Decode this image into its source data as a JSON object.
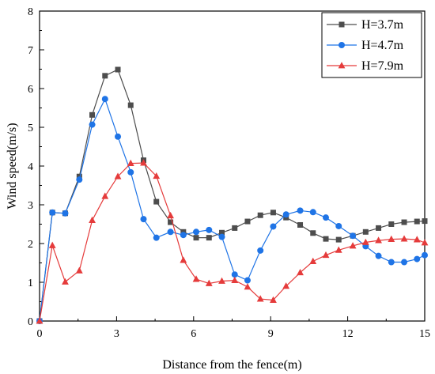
{
  "chart_data": {
    "type": "line",
    "xlabel": "Distance from the fence(m)",
    "ylabel": "Wind speed(m/s)",
    "xlim": [
      0,
      15
    ],
    "ylim": [
      0,
      8
    ],
    "xticks": [
      0,
      3,
      6,
      9,
      12,
      15
    ],
    "yticks": [
      0,
      1,
      2,
      3,
      4,
      5,
      6,
      7,
      8
    ],
    "grid": false,
    "legend_position": "top-right",
    "series": [
      {
        "name": "H=3.7m",
        "color": "#4d4d4d",
        "marker": "square",
        "points": [
          [
            0.0,
            0.0
          ],
          [
            0.5,
            2.8
          ],
          [
            1.0,
            2.78
          ],
          [
            1.55,
            3.73
          ],
          [
            2.05,
            5.32
          ],
          [
            2.55,
            6.33
          ],
          [
            3.05,
            6.49
          ],
          [
            3.55,
            5.57
          ],
          [
            4.05,
            4.15
          ],
          [
            4.55,
            3.08
          ],
          [
            5.1,
            2.55
          ],
          [
            5.6,
            2.3
          ],
          [
            6.1,
            2.15
          ],
          [
            6.6,
            2.15
          ],
          [
            7.1,
            2.28
          ],
          [
            7.6,
            2.4
          ],
          [
            8.1,
            2.57
          ],
          [
            8.6,
            2.73
          ],
          [
            9.1,
            2.8
          ],
          [
            9.6,
            2.67
          ],
          [
            10.15,
            2.48
          ],
          [
            10.65,
            2.27
          ],
          [
            11.15,
            2.12
          ],
          [
            11.65,
            2.1
          ],
          [
            12.2,
            2.2
          ],
          [
            12.7,
            2.3
          ],
          [
            13.2,
            2.4
          ],
          [
            13.7,
            2.5
          ],
          [
            14.2,
            2.55
          ],
          [
            14.7,
            2.57
          ],
          [
            15.0,
            2.58
          ]
        ]
      },
      {
        "name": "H=4.7m",
        "color": "#1f74e6",
        "marker": "circle",
        "points": [
          [
            0.0,
            0.0
          ],
          [
            0.5,
            2.8
          ],
          [
            1.0,
            2.78
          ],
          [
            1.55,
            3.65
          ],
          [
            2.05,
            5.07
          ],
          [
            2.55,
            5.73
          ],
          [
            3.05,
            4.76
          ],
          [
            3.55,
            3.84
          ],
          [
            4.05,
            2.63
          ],
          [
            4.55,
            2.15
          ],
          [
            5.1,
            2.3
          ],
          [
            5.6,
            2.22
          ],
          [
            6.1,
            2.3
          ],
          [
            6.6,
            2.35
          ],
          [
            7.1,
            2.17
          ],
          [
            7.6,
            1.2
          ],
          [
            8.1,
            1.05
          ],
          [
            8.6,
            1.82
          ],
          [
            9.1,
            2.44
          ],
          [
            9.6,
            2.75
          ],
          [
            10.15,
            2.85
          ],
          [
            10.65,
            2.81
          ],
          [
            11.15,
            2.67
          ],
          [
            11.65,
            2.45
          ],
          [
            12.2,
            2.2
          ],
          [
            12.7,
            1.93
          ],
          [
            13.2,
            1.68
          ],
          [
            13.7,
            1.52
          ],
          [
            14.2,
            1.52
          ],
          [
            14.7,
            1.6
          ],
          [
            15.0,
            1.7
          ]
        ]
      },
      {
        "name": "H=7.9m",
        "color": "#e53b3b",
        "marker": "triangle",
        "points": [
          [
            0.0,
            0.0
          ],
          [
            0.5,
            1.95
          ],
          [
            1.0,
            1.01
          ],
          [
            1.55,
            1.3
          ],
          [
            2.05,
            2.6
          ],
          [
            2.55,
            3.22
          ],
          [
            3.05,
            3.73
          ],
          [
            3.55,
            4.07
          ],
          [
            4.05,
            4.08
          ],
          [
            4.55,
            3.74
          ],
          [
            5.1,
            2.72
          ],
          [
            5.6,
            1.57
          ],
          [
            6.1,
            1.08
          ],
          [
            6.6,
            0.97
          ],
          [
            7.1,
            1.03
          ],
          [
            7.6,
            1.05
          ],
          [
            8.1,
            0.88
          ],
          [
            8.6,
            0.57
          ],
          [
            9.1,
            0.54
          ],
          [
            9.6,
            0.9
          ],
          [
            10.15,
            1.25
          ],
          [
            10.65,
            1.54
          ],
          [
            11.15,
            1.7
          ],
          [
            11.65,
            1.83
          ],
          [
            12.2,
            1.94
          ],
          [
            12.7,
            2.03
          ],
          [
            13.2,
            2.08
          ],
          [
            13.7,
            2.11
          ],
          [
            14.2,
            2.12
          ],
          [
            14.7,
            2.1
          ],
          [
            15.0,
            2.02
          ]
        ]
      }
    ]
  }
}
